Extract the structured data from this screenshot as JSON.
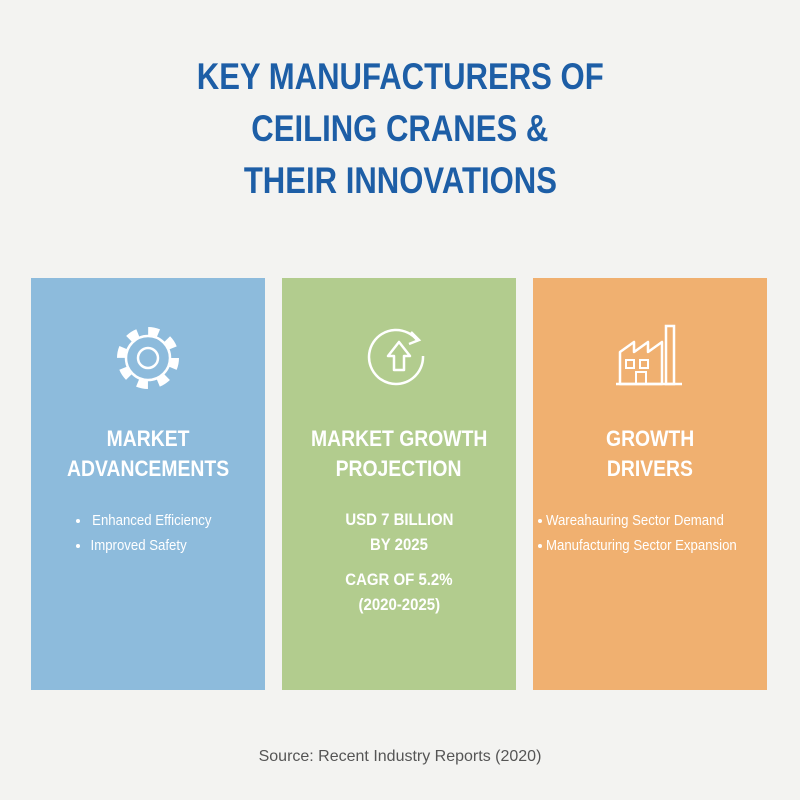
{
  "header": {
    "title_lines": [
      "KEY MANUFACTURERS OF",
      "CEILING CRANES &",
      "THEIR INNOVATIONS"
    ]
  },
  "cards": [
    {
      "title_lines": [
        "MARKET",
        "ADVANCEMENTS"
      ],
      "bullets": [
        "Enhanced Efficiency",
        "Improved Safety"
      ]
    },
    {
      "title_lines": [
        "MARKET GROWTH",
        "PROJECTION"
      ],
      "lines": [
        "USD 7 BILLION",
        "BY 2025",
        "CAGR OF 5.2%",
        "(2020-2025)"
      ]
    },
    {
      "title_lines": [
        "GROWTH",
        "DRIVERS"
      ],
      "bullets": [
        "Wareahauring Sector Demand",
        "Manufacturing Sector Expansion"
      ]
    }
  ],
  "footer": {
    "source": "Source: Recent Industry Reports (2020)"
  }
}
